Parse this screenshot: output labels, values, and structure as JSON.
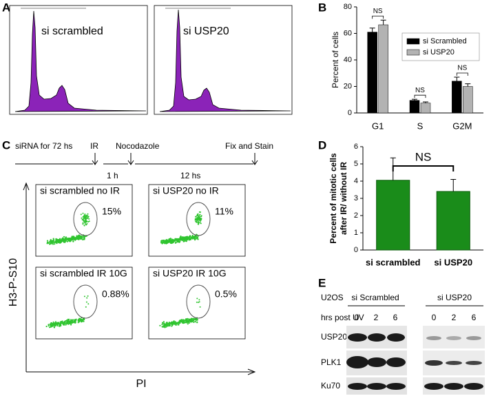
{
  "panel_letters": [
    "A",
    "B",
    "C",
    "D",
    "E"
  ],
  "panel_a": {
    "labels": [
      "si scrambled",
      "si USP20"
    ]
  },
  "chart_data": [
    {
      "type": "bar",
      "ylabel": "Percent of cells",
      "categories": [
        "G1",
        "S",
        "G2M"
      ],
      "series": [
        {
          "name": "si Scrambled",
          "color": "#000000",
          "values": [
            61,
            9.5,
            24
          ],
          "errors": [
            3,
            0.8,
            3
          ]
        },
        {
          "name": "si USP20",
          "color": "#b3b3b3",
          "values": [
            66.5,
            7.5,
            20
          ],
          "errors": [
            3.5,
            0.8,
            2
          ]
        }
      ],
      "annotations": [
        "NS",
        "NS",
        "NS"
      ],
      "ylim": [
        0,
        80
      ],
      "yticks": [
        0,
        20,
        40,
        60,
        80
      ],
      "legend": "upper right"
    },
    {
      "type": "bar",
      "ylabel": [
        "Percent of mitotic cells",
        "after IR/ without IR"
      ],
      "categories": [
        "si scrambled",
        "si USP20"
      ],
      "values": [
        4.05,
        3.4
      ],
      "errors": [
        1.3,
        0.7
      ],
      "color": "#1a8c1a",
      "annotation": "NS",
      "ylim": [
        0,
        6
      ],
      "yticks": [
        0,
        1,
        2,
        3,
        4,
        5,
        6
      ]
    }
  ],
  "panel_c": {
    "timeline": {
      "start": "siRNA for 72 hs",
      "ir": "IR",
      "nocodazole": "Nocodazole",
      "end": "Fix and Stain",
      "gap1": "1 h",
      "gap2": "12 hs"
    },
    "plots": [
      {
        "label": "si scrambled no IR",
        "percent": "15%"
      },
      {
        "label": "si USP20 no IR",
        "percent": "11%"
      },
      {
        "label": "si scrambled IR 10G",
        "percent": "0.88%"
      },
      {
        "label": "si USP20 IR 10G",
        "percent": "0.5%"
      }
    ],
    "y_axis": "H3-P-S10",
    "x_axis": "PI"
  },
  "panel_e": {
    "cell_line": "U2OS",
    "groups": [
      "si Scrambled",
      "si USP20"
    ],
    "time_label": "hrs post UV",
    "times": [
      "0",
      "2",
      "6",
      "0",
      "2",
      "6"
    ],
    "rows": [
      "USP20",
      "PLK1",
      "Ku70"
    ]
  }
}
